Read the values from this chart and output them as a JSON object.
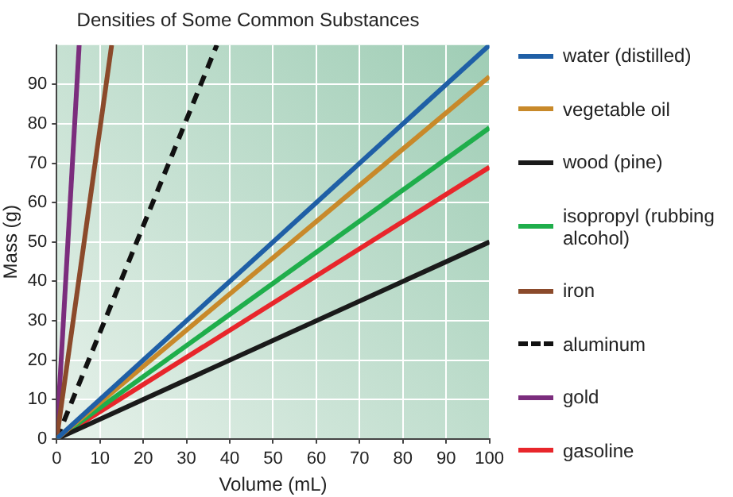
{
  "chart_data": {
    "type": "line",
    "title": "Densities of Some Common Substances",
    "xlabel": "Volume (mL)",
    "ylabel": "Mass (g)",
    "xlim": [
      0,
      100
    ],
    "xticks": [
      0,
      10,
      20,
      30,
      40,
      50,
      60,
      70,
      80,
      90,
      100
    ],
    "ylim": [
      0,
      100
    ],
    "yticks": [
      0,
      10,
      20,
      30,
      40,
      50,
      60,
      70,
      80,
      90
    ],
    "grid": true,
    "legend": "right",
    "marker": "none",
    "series": [
      {
        "name": "water (distilled)",
        "color": "#1f5fa6",
        "x": [
          0,
          100
        ],
        "values": [
          0,
          100
        ]
      },
      {
        "name": "vegetable oil",
        "color": "#c8892a",
        "x": [
          0,
          100
        ],
        "values": [
          0,
          92
        ]
      },
      {
        "name": "wood (pine)",
        "color": "#1a1a1a",
        "x": [
          0,
          100
        ],
        "values": [
          0,
          50
        ]
      },
      {
        "name": "isopropyl (rubbing alcohol)",
        "color": "#1fae4b",
        "x": [
          0,
          100
        ],
        "values": [
          0,
          79
        ]
      },
      {
        "name": "iron",
        "color": "#8b4a2b",
        "x": [
          0,
          12.7
        ],
        "values": [
          0,
          100
        ]
      },
      {
        "name": "aluminum",
        "color": "#111111",
        "x": [
          0,
          37
        ],
        "values": [
          0,
          100
        ],
        "line_style": "dashed"
      },
      {
        "name": "gold",
        "color": "#7b2d7d",
        "x": [
          0,
          5.2
        ],
        "values": [
          0,
          100
        ]
      },
      {
        "name": "gasoline",
        "color": "#e8262b",
        "x": [
          0,
          100
        ],
        "values": [
          0,
          69
        ]
      }
    ]
  }
}
